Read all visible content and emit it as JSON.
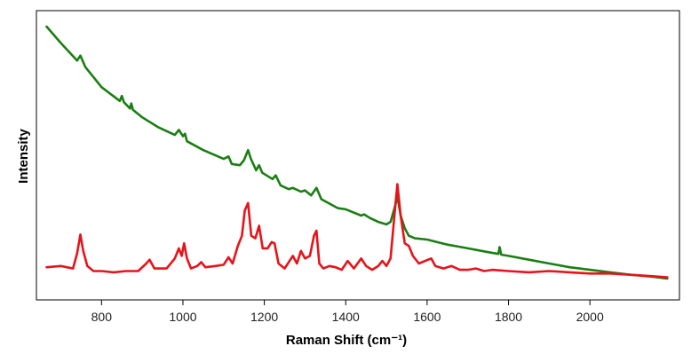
{
  "chart_data": {
    "type": "line",
    "xlabel": "Raman Shift (cm⁻¹)",
    "ylabel": "Intensity",
    "xlim": [
      640,
      2220
    ],
    "ylim": [
      0,
      1
    ],
    "xticks": [
      "800",
      "1000",
      "1200",
      "1400",
      "1600",
      "1800",
      "2000"
    ],
    "grid": false,
    "legend": "none",
    "series": [
      {
        "color": "#1a7f12",
        "x": [
          665,
          700,
          740,
          748,
          760,
          800,
          845,
          850,
          855,
          870,
          873,
          877,
          900,
          940,
          980,
          990,
          1000,
          1005,
          1010,
          1050,
          1100,
          1112,
          1120,
          1140,
          1150,
          1160,
          1167,
          1180,
          1187,
          1195,
          1220,
          1228,
          1240,
          1260,
          1270,
          1290,
          1300,
          1315,
          1328,
          1340,
          1380,
          1400,
          1438,
          1445,
          1460,
          1480,
          1500,
          1510,
          1520,
          1527,
          1535,
          1545,
          1555,
          1570,
          1600,
          1650,
          1700,
          1750,
          1775,
          1778,
          1782,
          1800,
          1850,
          1900,
          1950,
          2000,
          2050,
          2100,
          2150,
          2190
        ],
        "y": [
          1.0,
          0.935,
          0.865,
          0.885,
          0.84,
          0.76,
          0.705,
          0.725,
          0.7,
          0.675,
          0.695,
          0.67,
          0.64,
          0.6,
          0.57,
          0.59,
          0.565,
          0.575,
          0.545,
          0.51,
          0.475,
          0.485,
          0.455,
          0.45,
          0.47,
          0.51,
          0.475,
          0.43,
          0.45,
          0.42,
          0.395,
          0.41,
          0.37,
          0.355,
          0.36,
          0.345,
          0.35,
          0.33,
          0.36,
          0.315,
          0.28,
          0.275,
          0.25,
          0.255,
          0.24,
          0.225,
          0.215,
          0.225,
          0.28,
          0.325,
          0.25,
          0.2,
          0.17,
          0.16,
          0.155,
          0.135,
          0.12,
          0.105,
          0.098,
          0.125,
          0.095,
          0.09,
          0.075,
          0.06,
          0.045,
          0.035,
          0.025,
          0.015,
          0.008,
          0.0
        ]
      },
      {
        "color": "#e8131a",
        "x": [
          665,
          700,
          730,
          740,
          748,
          755,
          765,
          780,
          800,
          830,
          860,
          890,
          910,
          918,
          930,
          960,
          980,
          990,
          997,
          1003,
          1010,
          1020,
          1035,
          1045,
          1055,
          1080,
          1100,
          1112,
          1122,
          1135,
          1145,
          1152,
          1160,
          1168,
          1178,
          1187,
          1196,
          1208,
          1218,
          1225,
          1235,
          1250,
          1262,
          1270,
          1280,
          1290,
          1300,
          1312,
          1322,
          1328,
          1335,
          1345,
          1360,
          1375,
          1390,
          1405,
          1420,
          1438,
          1450,
          1465,
          1480,
          1490,
          1500,
          1510,
          1518,
          1527,
          1535,
          1545,
          1555,
          1565,
          1580,
          1595,
          1610,
          1620,
          1640,
          1660,
          1680,
          1700,
          1720,
          1740,
          1760,
          1800,
          1850,
          1900,
          1950,
          2000,
          2050,
          2100,
          2150,
          2190
        ],
        "y": [
          0.045,
          0.05,
          0.04,
          0.1,
          0.175,
          0.11,
          0.05,
          0.03,
          0.03,
          0.025,
          0.03,
          0.03,
          0.06,
          0.075,
          0.04,
          0.04,
          0.08,
          0.12,
          0.09,
          0.14,
          0.08,
          0.04,
          0.05,
          0.065,
          0.045,
          0.05,
          0.055,
          0.085,
          0.06,
          0.13,
          0.17,
          0.27,
          0.3,
          0.17,
          0.16,
          0.21,
          0.12,
          0.12,
          0.145,
          0.14,
          0.06,
          0.04,
          0.07,
          0.09,
          0.06,
          0.11,
          0.08,
          0.09,
          0.17,
          0.19,
          0.06,
          0.04,
          0.05,
          0.045,
          0.035,
          0.07,
          0.04,
          0.08,
          0.05,
          0.035,
          0.05,
          0.07,
          0.05,
          0.08,
          0.22,
          0.375,
          0.25,
          0.14,
          0.13,
          0.09,
          0.06,
          0.07,
          0.08,
          0.05,
          0.04,
          0.05,
          0.035,
          0.035,
          0.04,
          0.03,
          0.035,
          0.03,
          0.025,
          0.03,
          0.025,
          0.02,
          0.02,
          0.015,
          0.01,
          0.005
        ]
      }
    ]
  }
}
